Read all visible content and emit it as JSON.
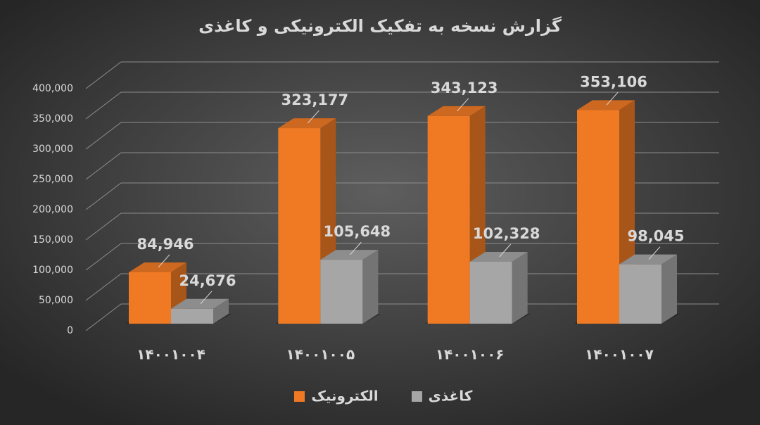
{
  "chart_data": {
    "type": "bar3d",
    "title": "گزارش نسخه به تفکیک الکترونیکی و کاغذی",
    "categories": [
      "۱۴۰۰۱۰۰۴",
      "۱۴۰۰۱۰۰۵",
      "۱۴۰۰۱۰۰۶",
      "۱۴۰۰۱۰۰۷"
    ],
    "series": [
      {
        "name": "الکترونیک",
        "color": "#f07a24",
        "values": [
          84946,
          323177,
          343123,
          353106
        ],
        "value_labels": [
          "84,946",
          "323,177",
          "343,123",
          "353,106"
        ]
      },
      {
        "name": "کاغذی",
        "color": "#a6a6a6",
        "values": [
          24676,
          105648,
          102328,
          98045
        ],
        "value_labels": [
          "24,676",
          "105,648",
          "102,328",
          "98,045"
        ]
      }
    ],
    "ylim": [
      0,
      400000
    ],
    "yticks": [
      0,
      {
        "value": 50000,
        "label": "50,000"
      },
      {
        "value": 100000,
        "label": "100,000"
      },
      {
        "value": 150000,
        "label": "150,000"
      },
      {
        "value": 200000,
        "label": "200,000"
      },
      {
        "value": 250000,
        "label": "250,000"
      },
      {
        "value": 300000,
        "label": "300,000"
      },
      {
        "value": 350000,
        "label": "350,000"
      },
      {
        "value": 400000,
        "label": "400,000"
      }
    ],
    "grid": true
  }
}
